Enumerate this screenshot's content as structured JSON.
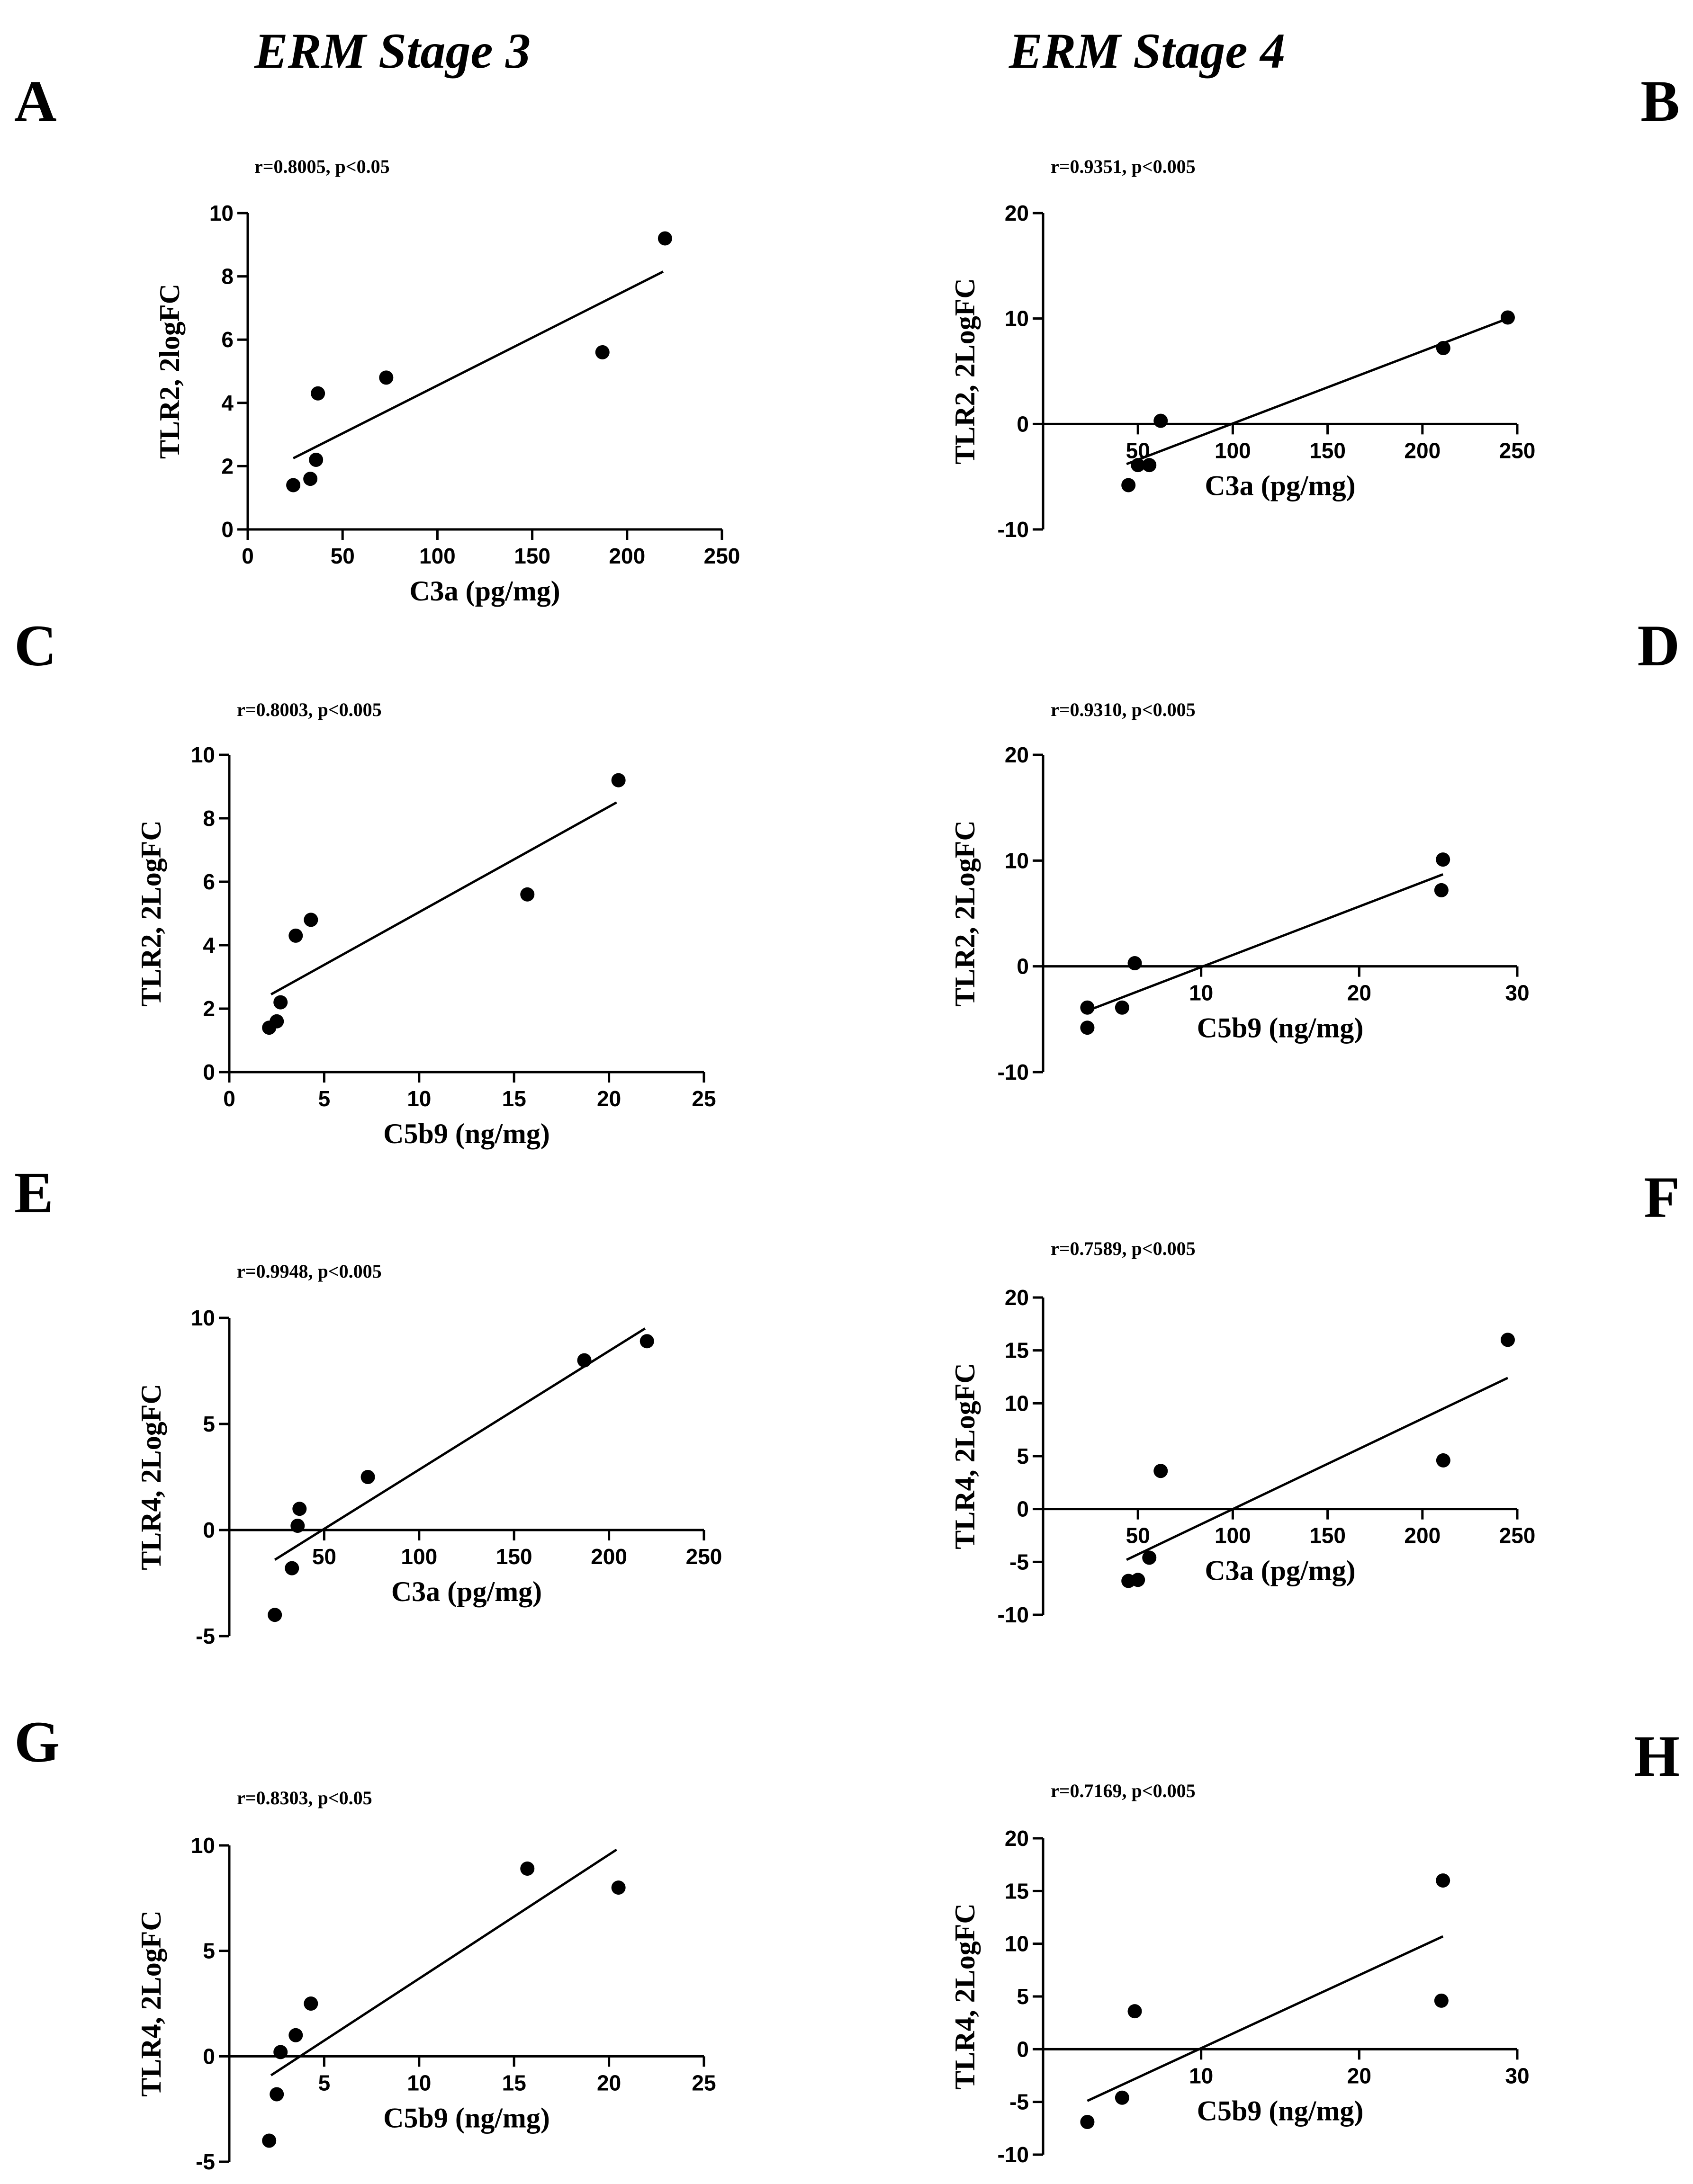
{
  "column_headers": [
    "ERM Stage 3",
    "ERM Stage 4"
  ],
  "chart_data": [
    {
      "panel": "A",
      "type": "scatter",
      "stat": "r=0.8005, p<0.05",
      "xlabel": "C3a (pg/mg)",
      "ylabel": "TLR2, 2logFC",
      "xlim": [
        0,
        250
      ],
      "ylim": [
        0,
        10
      ],
      "xticks": [
        0,
        50,
        100,
        150,
        200,
        250
      ],
      "yticks": [
        0,
        2,
        4,
        6,
        8,
        10
      ],
      "points": [
        [
          24,
          1.4
        ],
        [
          33,
          1.6
        ],
        [
          36,
          2.2
        ],
        [
          37,
          4.3
        ],
        [
          73,
          4.8
        ],
        [
          187,
          5.6
        ],
        [
          220,
          9.2
        ]
      ],
      "fit": [
        [
          24,
          2.25
        ],
        [
          219,
          8.15
        ]
      ]
    },
    {
      "panel": "B",
      "type": "scatter",
      "stat": "r=0.9351, p<0.005",
      "xlabel": "C3a (pg/mg)",
      "ylabel": "TLR2, 2LogFC",
      "xlim": [
        0,
        250
      ],
      "ylim": [
        -10,
        20
      ],
      "xaxis_at": 0,
      "xticks": [
        50,
        100,
        150,
        200,
        250
      ],
      "yticks": [
        -10,
        0,
        10,
        20
      ],
      "points": [
        [
          45,
          -5.8
        ],
        [
          50,
          -3.9
        ],
        [
          56,
          -3.9
        ],
        [
          62,
          0.3
        ],
        [
          211,
          7.2
        ],
        [
          245,
          10.1
        ]
      ],
      "fit": [
        [
          44,
          -3.8
        ],
        [
          245,
          10.0
        ]
      ]
    },
    {
      "panel": "C",
      "type": "scatter",
      "stat": "r=0.8003, p<0.005",
      "xlabel": "C5b9 (ng/mg)",
      "ylabel": "TLR2, 2LogFC",
      "xlim": [
        0,
        25
      ],
      "ylim": [
        0,
        10
      ],
      "xticks": [
        0,
        5,
        10,
        15,
        20,
        25
      ],
      "yticks": [
        0,
        2,
        4,
        6,
        8,
        10
      ],
      "points": [
        [
          2.1,
          1.4
        ],
        [
          2.5,
          1.6
        ],
        [
          2.7,
          2.2
        ],
        [
          3.5,
          4.3
        ],
        [
          4.3,
          4.8
        ],
        [
          15.7,
          5.6
        ],
        [
          20.5,
          9.2
        ]
      ],
      "fit": [
        [
          2.2,
          2.45
        ],
        [
          20.4,
          8.5
        ]
      ]
    },
    {
      "panel": "D",
      "type": "scatter",
      "stat": "r=0.9310, p<0.005",
      "xlabel": "C5b9 (ng/mg)",
      "ylabel": "TLR2, 2LogFC",
      "xlim": [
        0,
        30
      ],
      "ylim": [
        -10,
        20
      ],
      "xaxis_at": 0,
      "xticks": [
        10,
        20,
        30
      ],
      "yticks": [
        -10,
        0,
        10,
        20
      ],
      "points": [
        [
          2.8,
          -5.8
        ],
        [
          2.8,
          -3.9
        ],
        [
          5.0,
          -3.9
        ],
        [
          5.8,
          0.3
        ],
        [
          25.2,
          7.2
        ],
        [
          25.3,
          10.1
        ]
      ],
      "fit": [
        [
          2.8,
          -4.2
        ],
        [
          25.3,
          8.7
        ]
      ]
    },
    {
      "panel": "E",
      "type": "scatter",
      "stat": "r=0.9948, p<0.005",
      "xlabel": "C3a (pg/mg)",
      "ylabel": "TLR4, 2LogFC",
      "xlim": [
        0,
        250
      ],
      "ylim": [
        -5,
        10
      ],
      "xaxis_at": 0,
      "xticks": [
        50,
        100,
        150,
        200,
        250
      ],
      "yticks": [
        -5,
        0,
        5,
        10
      ],
      "points": [
        [
          24,
          -4.0
        ],
        [
          33,
          -1.8
        ],
        [
          36,
          0.2
        ],
        [
          37,
          1.0
        ],
        [
          73,
          2.5
        ],
        [
          187,
          8.0
        ],
        [
          220,
          8.9
        ]
      ],
      "fit": [
        [
          24,
          -1.4
        ],
        [
          219,
          9.5
        ]
      ]
    },
    {
      "panel": "F",
      "type": "scatter",
      "stat": "r=0.7589, p<0.005",
      "xlabel": "C3a (pg/mg)",
      "ylabel": "TLR4, 2LogFC",
      "xlim": [
        0,
        250
      ],
      "ylim": [
        -10,
        20
      ],
      "xaxis_at": 0,
      "xticks": [
        50,
        100,
        150,
        200,
        250
      ],
      "yticks": [
        -10,
        -5,
        0,
        5,
        10,
        15,
        20
      ],
      "points": [
        [
          45,
          -6.8
        ],
        [
          50,
          -6.7
        ],
        [
          56,
          -4.6
        ],
        [
          62,
          3.6
        ],
        [
          211,
          4.6
        ],
        [
          245,
          16.0
        ]
      ],
      "fit": [
        [
          44,
          -4.8
        ],
        [
          245,
          12.4
        ]
      ]
    },
    {
      "panel": "G",
      "type": "scatter",
      "stat": "r=0.8303, p<0.05",
      "xlabel": "C5b9 (ng/mg)",
      "ylabel": "TLR4, 2LogFC",
      "xlim": [
        0,
        25
      ],
      "ylim": [
        -5,
        10
      ],
      "xaxis_at": 0,
      "xticks": [
        5,
        10,
        15,
        20,
        25
      ],
      "yticks": [
        -5,
        0,
        5,
        10
      ],
      "points": [
        [
          2.1,
          -4.0
        ],
        [
          2.5,
          -1.8
        ],
        [
          2.7,
          0.2
        ],
        [
          3.5,
          1.0
        ],
        [
          4.3,
          2.5
        ],
        [
          15.7,
          8.9
        ],
        [
          20.5,
          8.0
        ]
      ],
      "fit": [
        [
          2.2,
          -0.9
        ],
        [
          20.4,
          9.8
        ]
      ]
    },
    {
      "panel": "H",
      "type": "scatter",
      "stat": "r=0.7169, p<0.005",
      "xlabel": "C5b9 (ng/mg)",
      "ylabel": "TLR4, 2LogFC",
      "xlim": [
        0,
        30
      ],
      "ylim": [
        -10,
        20
      ],
      "xaxis_at": 0,
      "xticks": [
        10,
        20,
        30
      ],
      "yticks": [
        -10,
        -5,
        0,
        5,
        10,
        15,
        20
      ],
      "points": [
        [
          2.8,
          -6.9
        ],
        [
          5.0,
          -4.6
        ],
        [
          5.8,
          3.6
        ],
        [
          25.2,
          4.6
        ],
        [
          25.3,
          16.0
        ]
      ],
      "fit": [
        [
          2.8,
          -4.9
        ],
        [
          25.3,
          10.7
        ]
      ]
    }
  ]
}
